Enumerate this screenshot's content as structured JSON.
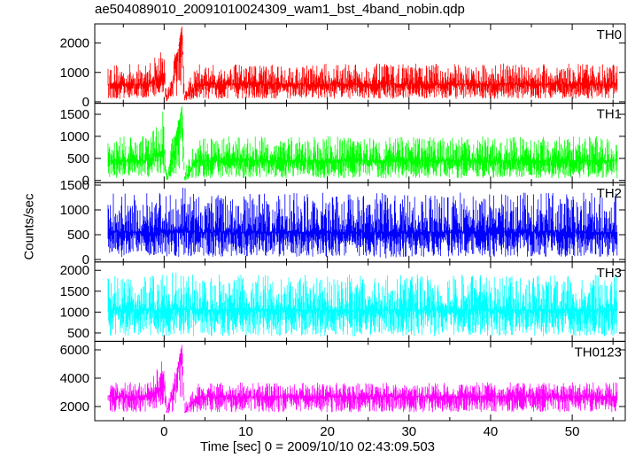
{
  "chart_data": {
    "type": "line",
    "title": "ae504089010_20091010024309_wam1_bst_4band_nobin.qdp",
    "xlabel": "Time [sec]  0 = 2009/10/10 02:43:09.503",
    "ylabel": "Counts/sec",
    "xlim": [
      -8.5,
      56.5
    ],
    "xticks": [
      0,
      10,
      20,
      30,
      40,
      50
    ],
    "grid": false,
    "panels": [
      {
        "name": "TH0",
        "color": "#ff0000",
        "ylim": [
          -50,
          2650
        ],
        "yticks": [
          0,
          1000,
          2000
        ],
        "x": [
          -8,
          -6,
          -4,
          -2,
          0,
          0.3,
          1,
          2.2,
          2.5,
          4,
          6,
          10,
          15,
          20,
          25,
          30,
          35,
          40,
          45,
          50,
          56
        ],
        "y": [
          600,
          600,
          600,
          600,
          900,
          0,
          600,
          2600,
          100,
          600,
          600,
          600,
          600,
          600,
          600,
          600,
          600,
          600,
          600,
          600,
          600
        ],
        "y_low": [
          100,
          100,
          100,
          100,
          300,
          0,
          100,
          200,
          0,
          100,
          100,
          100,
          100,
          100,
          100,
          100,
          100,
          100,
          100,
          100,
          100
        ],
        "y_high": [
          1300,
          1300,
          1300,
          1300,
          2000,
          200,
          1300,
          2600,
          400,
          1300,
          1300,
          1300,
          1300,
          1300,
          1300,
          1300,
          1300,
          1300,
          1300,
          1300,
          1300
        ]
      },
      {
        "name": "TH1",
        "color": "#00ff00",
        "ylim": [
          -50,
          1750
        ],
        "yticks": [
          0,
          500,
          1000,
          1500
        ],
        "x": [
          -8,
          -6,
          -4,
          -2,
          0,
          0.3,
          1,
          2.2,
          2.5,
          4,
          6,
          10,
          15,
          20,
          25,
          30,
          35,
          40,
          45,
          50,
          56
        ],
        "y": [
          450,
          450,
          450,
          450,
          700,
          0,
          450,
          1700,
          50,
          450,
          450,
          450,
          450,
          450,
          450,
          450,
          450,
          450,
          450,
          450,
          450
        ],
        "y_low": [
          50,
          50,
          50,
          50,
          150,
          0,
          50,
          150,
          0,
          50,
          50,
          50,
          50,
          50,
          50,
          50,
          50,
          50,
          50,
          50,
          50
        ],
        "y_high": [
          1000,
          1000,
          1000,
          1000,
          1700,
          150,
          1000,
          1700,
          300,
          1000,
          1000,
          1000,
          1000,
          1000,
          1000,
          1000,
          1000,
          1000,
          1000,
          1000,
          1000
        ]
      },
      {
        "name": "TH2",
        "color": "#0000ff",
        "ylim": [
          -50,
          1550
        ],
        "yticks": [
          0,
          500,
          1000,
          1500
        ],
        "x": [
          -8,
          -6,
          -4,
          -2,
          0,
          2,
          4,
          6,
          10,
          15,
          20,
          25,
          27,
          30,
          35,
          40,
          45,
          50,
          56
        ],
        "y": [
          550,
          550,
          550,
          550,
          550,
          600,
          550,
          550,
          550,
          550,
          550,
          550,
          550,
          550,
          550,
          550,
          550,
          550,
          550
        ],
        "y_low": [
          50,
          50,
          50,
          50,
          50,
          50,
          50,
          50,
          50,
          50,
          50,
          50,
          20,
          50,
          50,
          50,
          50,
          50,
          50
        ],
        "y_high": [
          1350,
          1350,
          1350,
          1350,
          1350,
          1500,
          1350,
          1350,
          1350,
          1350,
          1350,
          1350,
          1350,
          1350,
          1350,
          1350,
          1350,
          1350,
          1350
        ]
      },
      {
        "name": "TH3",
        "color": "#00ffff",
        "ylim": [
          300,
          2200
        ],
        "yticks": [
          500,
          1000,
          1500,
          2000
        ],
        "x": [
          -8,
          -6,
          -4,
          -2,
          0,
          2,
          4,
          6,
          10,
          15,
          20,
          25,
          30,
          35,
          40,
          45,
          50,
          56
        ],
        "y": [
          1050,
          1050,
          1050,
          1050,
          1050,
          1100,
          1050,
          1050,
          1050,
          1050,
          1050,
          1050,
          1050,
          1050,
          1050,
          1050,
          1050,
          1050
        ],
        "y_low": [
          420,
          420,
          420,
          420,
          420,
          420,
          420,
          420,
          420,
          420,
          420,
          420,
          420,
          420,
          420,
          420,
          420,
          420
        ],
        "y_high": [
          1900,
          1900,
          1900,
          1900,
          1900,
          2000,
          1900,
          1900,
          1900,
          1900,
          1900,
          1900,
          1900,
          1900,
          1900,
          1900,
          1900,
          1900
        ]
      },
      {
        "name": "TH0123",
        "color": "#ff00ff",
        "ylim": [
          1000,
          6600
        ],
        "yticks": [
          2000,
          4000,
          6000
        ],
        "x": [
          -8,
          -6,
          -4,
          -2,
          0,
          0.3,
          1,
          2.2,
          2.5,
          4,
          6,
          10,
          15,
          20,
          25,
          30,
          35,
          40,
          45,
          50,
          56
        ],
        "y": [
          2700,
          2700,
          2700,
          2700,
          3500,
          1600,
          2700,
          6400,
          1600,
          2700,
          2700,
          2700,
          2700,
          2700,
          2700,
          2700,
          2700,
          2700,
          2700,
          2700,
          2700
        ],
        "y_low": [
          1600,
          1600,
          1600,
          1600,
          2200,
          1500,
          1600,
          2500,
          1500,
          1600,
          1600,
          1600,
          1600,
          1600,
          1600,
          1600,
          1600,
          1600,
          1600,
          1600,
          1600
        ],
        "y_high": [
          3700,
          3700,
          3700,
          3700,
          5500,
          2000,
          3700,
          6400,
          2200,
          3700,
          3700,
          3700,
          3700,
          3700,
          3700,
          3700,
          3700,
          3700,
          3700,
          3700,
          3700
        ]
      }
    ]
  }
}
